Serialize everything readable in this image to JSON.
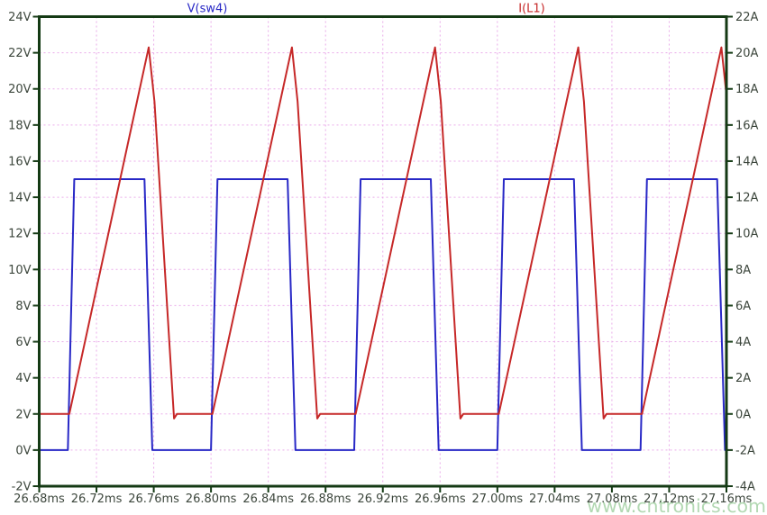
{
  "window": {
    "background": "#ffffff",
    "plot_background": "#ffffff"
  },
  "watermark": {
    "text": "www.cntronics.com",
    "color": "#b2d8b2"
  },
  "chart_data": {
    "type": "line",
    "title": "",
    "legend_position": "top",
    "frame_color": "#143a14",
    "label_color": "#3c463c",
    "grid": {
      "color": "#e9aae9",
      "style": "dashed",
      "on": true
    },
    "x_axis": {
      "unit": "ms",
      "min": 26.68,
      "max": 27.16,
      "ticks": [
        {
          "v": 26.68,
          "label": "26.68ms"
        },
        {
          "v": 26.72,
          "label": "26.72ms"
        },
        {
          "v": 26.76,
          "label": "26.76ms"
        },
        {
          "v": 26.8,
          "label": "26.80ms"
        },
        {
          "v": 26.84,
          "label": "26.84ms"
        },
        {
          "v": 26.88,
          "label": "26.88ms"
        },
        {
          "v": 26.92,
          "label": "26.92ms"
        },
        {
          "v": 26.96,
          "label": "26.96ms"
        },
        {
          "v": 27.0,
          "label": "27.00ms"
        },
        {
          "v": 27.04,
          "label": "27.04ms"
        },
        {
          "v": 27.08,
          "label": "27.08ms"
        },
        {
          "v": 27.12,
          "label": "27.12ms"
        },
        {
          "v": 27.16,
          "label": "27.16ms"
        }
      ]
    },
    "y_axis_left": {
      "unit": "V",
      "min": -2,
      "max": 24,
      "ticks": [
        {
          "v": 24,
          "label": "24V"
        },
        {
          "v": 22,
          "label": "22V"
        },
        {
          "v": 20,
          "label": "20V"
        },
        {
          "v": 18,
          "label": "18V"
        },
        {
          "v": 16,
          "label": "16V"
        },
        {
          "v": 14,
          "label": "14V"
        },
        {
          "v": 12,
          "label": "12V"
        },
        {
          "v": 10,
          "label": "10V"
        },
        {
          "v": 8,
          "label": "8V"
        },
        {
          "v": 6,
          "label": "6V"
        },
        {
          "v": 4,
          "label": "4V"
        },
        {
          "v": 2,
          "label": "2V"
        },
        {
          "v": 0,
          "label": "0V"
        },
        {
          "v": -2,
          "label": "-2V"
        }
      ]
    },
    "y_axis_right": {
      "unit": "A",
      "min": -4,
      "max": 22,
      "ticks": [
        {
          "v": 22,
          "label": "22A"
        },
        {
          "v": 20,
          "label": "20A"
        },
        {
          "v": 18,
          "label": "18A"
        },
        {
          "v": 16,
          "label": "16A"
        },
        {
          "v": 14,
          "label": "14A"
        },
        {
          "v": 12,
          "label": "12A"
        },
        {
          "v": 10,
          "label": "10A"
        },
        {
          "v": 8,
          "label": "8A"
        },
        {
          "v": 6,
          "label": "6A"
        },
        {
          "v": 4,
          "label": "4A"
        },
        {
          "v": 2,
          "label": "2A"
        },
        {
          "v": 0,
          "label": "0A"
        },
        {
          "v": -2,
          "label": "-2A"
        },
        {
          "v": -4,
          "label": "-4A"
        }
      ]
    },
    "series": [
      {
        "name": "V(sw4)",
        "axis": "left",
        "color": "#2828c6",
        "description": "switch-node square wave, 0V to 15V, 0.1ms period, ~56% duty",
        "points": [
          [
            26.68,
            0
          ],
          [
            26.7,
            0
          ],
          [
            26.7045,
            15
          ],
          [
            26.7535,
            15
          ],
          [
            26.759,
            0
          ],
          [
            26.8,
            0
          ],
          [
            26.8045,
            15
          ],
          [
            26.8535,
            15
          ],
          [
            26.859,
            0
          ],
          [
            26.9,
            0
          ],
          [
            26.9045,
            15
          ],
          [
            26.9535,
            15
          ],
          [
            26.959,
            0
          ],
          [
            27.0,
            0
          ],
          [
            27.0045,
            15
          ],
          [
            27.0535,
            15
          ],
          [
            27.059,
            0
          ],
          [
            27.1,
            0
          ],
          [
            27.1045,
            15
          ],
          [
            27.1535,
            15
          ],
          [
            27.159,
            0
          ],
          [
            27.175,
            0
          ]
        ]
      },
      {
        "name": "I(L1)",
        "axis": "right",
        "color": "#c62828",
        "description": "inductor current triangle, 0A to ~20.3A peak, discontinuous",
        "points": [
          [
            26.68,
            0
          ],
          [
            26.701,
            0
          ],
          [
            26.7565,
            20.3
          ],
          [
            26.7605,
            17.3
          ],
          [
            26.7742,
            -0.25
          ],
          [
            26.7762,
            0
          ],
          [
            26.801,
            0
          ],
          [
            26.8565,
            20.3
          ],
          [
            26.8605,
            17.3
          ],
          [
            26.8742,
            -0.25
          ],
          [
            26.8762,
            0
          ],
          [
            26.901,
            0
          ],
          [
            26.9565,
            20.3
          ],
          [
            26.9605,
            17.3
          ],
          [
            26.9742,
            -0.25
          ],
          [
            26.9762,
            0
          ],
          [
            27.001,
            0
          ],
          [
            27.0565,
            20.3
          ],
          [
            27.0605,
            17.3
          ],
          [
            27.0742,
            -0.25
          ],
          [
            27.0762,
            0
          ],
          [
            27.101,
            0
          ],
          [
            27.1565,
            20.3
          ],
          [
            27.1605,
            17.3
          ],
          [
            27.1742,
            -0.25
          ]
        ]
      }
    ]
  }
}
